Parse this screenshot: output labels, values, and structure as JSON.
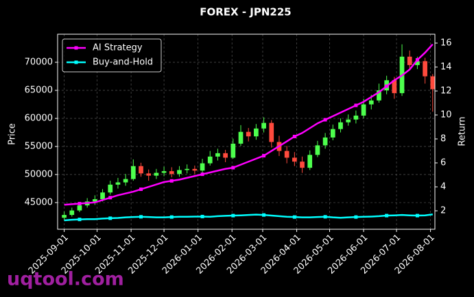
{
  "chart_data": {
    "type": "candlestick",
    "title": "FOREX - JPN225",
    "y_label": "Price",
    "y2_label": "Return",
    "watermark": "uqtool.com",
    "x": [
      "2025-09-01",
      "2025-09-08",
      "2025-09-15",
      "2025-09-22",
      "2025-09-29",
      "2025-10-06",
      "2025-10-13",
      "2025-10-20",
      "2025-10-27",
      "2025-11-03",
      "2025-11-10",
      "2025-11-17",
      "2025-11-24",
      "2025-12-01",
      "2025-12-08",
      "2025-12-15",
      "2025-12-22",
      "2025-12-29",
      "2026-01-05",
      "2026-01-12",
      "2026-01-19",
      "2026-01-26",
      "2026-02-02",
      "2026-02-09",
      "2026-02-16",
      "2026-02-23",
      "2026-03-02",
      "2026-03-09",
      "2026-03-16",
      "2026-03-23",
      "2026-03-30",
      "2026-04-06",
      "2026-04-13",
      "2026-04-20",
      "2026-04-27",
      "2026-05-04",
      "2026-05-11",
      "2026-05-18",
      "2026-05-25",
      "2026-06-01",
      "2026-06-08",
      "2026-06-15",
      "2026-06-22",
      "2026-06-29",
      "2026-07-06",
      "2026-07-13",
      "2026-07-20",
      "2026-07-27",
      "2026-08-03"
    ],
    "open": [
      42300,
      42800,
      43600,
      44500,
      45200,
      45600,
      46800,
      48200,
      48600,
      49200,
      51500,
      50200,
      49800,
      50300,
      50600,
      50100,
      50800,
      51000,
      50700,
      52000,
      53200,
      53800,
      53000,
      55500,
      57600,
      56800,
      58200,
      59200,
      55800,
      54200,
      53000,
      52300,
      51200,
      53500,
      55200,
      56600,
      58100,
      59300,
      59800,
      60500,
      62500,
      63200,
      65000,
      66800,
      64500,
      71000,
      69500,
      70200,
      67500
    ],
    "high": [
      43400,
      44100,
      45100,
      45800,
      46300,
      47400,
      48900,
      49400,
      50100,
      52700,
      52100,
      50900,
      51000,
      51400,
      51300,
      51500,
      51800,
      51600,
      52800,
      54200,
      54600,
      54400,
      56400,
      58800,
      58300,
      59000,
      60200,
      59700,
      56900,
      55100,
      54000,
      53200,
      54300,
      56000,
      57400,
      58900,
      60000,
      60700,
      61400,
      63500,
      64200,
      66200,
      67600,
      67400,
      73200,
      72100,
      71000,
      70800,
      67900
    ],
    "low": [
      41900,
      42500,
      43300,
      44100,
      44600,
      45200,
      46400,
      47500,
      48000,
      48900,
      49600,
      48900,
      49200,
      49700,
      49500,
      49600,
      50200,
      50100,
      50300,
      51600,
      52500,
      52200,
      52800,
      55100,
      55900,
      56200,
      57500,
      54800,
      53300,
      52000,
      51500,
      50300,
      50800,
      53100,
      54600,
      56100,
      57500,
      58700,
      59100,
      60000,
      61600,
      62800,
      64300,
      63500,
      64000,
      68600,
      68800,
      66200,
      61200
    ],
    "close": [
      42800,
      43600,
      44500,
      45200,
      45600,
      46800,
      48200,
      48600,
      49200,
      51500,
      50200,
      49800,
      50300,
      50600,
      50100,
      50800,
      51000,
      50700,
      52000,
      53200,
      53800,
      53000,
      55500,
      57600,
      56800,
      58200,
      59200,
      55800,
      54200,
      53000,
      52300,
      51200,
      53500,
      55200,
      56600,
      58100,
      59300,
      59800,
      60500,
      62500,
      63200,
      65000,
      66800,
      64500,
      71000,
      69500,
      70200,
      67500,
      65200
    ],
    "up_color": "#4dff4d",
    "down_color": "#ff4a3d",
    "series": [
      {
        "name": "AI Strategy",
        "color": "#ff00ff",
        "axis": "y2",
        "values": [
          2.5,
          2.55,
          2.6,
          2.65,
          2.7,
          2.9,
          3.1,
          3.3,
          3.45,
          3.6,
          3.8,
          4.0,
          4.2,
          4.4,
          4.5,
          4.6,
          4.75,
          4.9,
          5.05,
          5.2,
          5.35,
          5.5,
          5.6,
          5.85,
          6.1,
          6.35,
          6.6,
          7.0,
          7.4,
          7.8,
          8.2,
          8.5,
          8.9,
          9.3,
          9.6,
          9.9,
          10.2,
          10.5,
          10.8,
          11.1,
          11.5,
          11.9,
          12.4,
          12.9,
          13.3,
          13.8,
          14.6,
          15.2,
          15.9
        ]
      },
      {
        "name": "Buy-and-Hold",
        "color": "#00ffff",
        "axis": "y2",
        "values": [
          1.2,
          1.25,
          1.28,
          1.3,
          1.3,
          1.35,
          1.38,
          1.4,
          1.45,
          1.48,
          1.5,
          1.48,
          1.45,
          1.45,
          1.48,
          1.5,
          1.5,
          1.52,
          1.52,
          1.5,
          1.55,
          1.58,
          1.6,
          1.62,
          1.65,
          1.68,
          1.65,
          1.6,
          1.55,
          1.5,
          1.48,
          1.45,
          1.45,
          1.48,
          1.5,
          1.45,
          1.42,
          1.45,
          1.48,
          1.5,
          1.52,
          1.55,
          1.6,
          1.62,
          1.65,
          1.62,
          1.6,
          1.62,
          1.7
        ]
      }
    ],
    "xlim": [
      "2025-08-26",
      "2026-08-05"
    ],
    "xticks": [
      "2025-09-01",
      "2025-10-01",
      "2025-11-01",
      "2025-12-01",
      "2026-01-01",
      "2026-02-01",
      "2026-03-01",
      "2026-04-01",
      "2026-05-01",
      "2026-06-01",
      "2026-07-01",
      "2026-08-01"
    ],
    "ylim": [
      40250,
      75000
    ],
    "yticks": [
      45000,
      50000,
      55000,
      60000,
      65000,
      70000
    ],
    "y2lim": [
      0.46,
      16.74
    ],
    "y2ticks": [
      2,
      4,
      6,
      8,
      10,
      12,
      14,
      16
    ],
    "grid": true,
    "legend": "upper left"
  }
}
